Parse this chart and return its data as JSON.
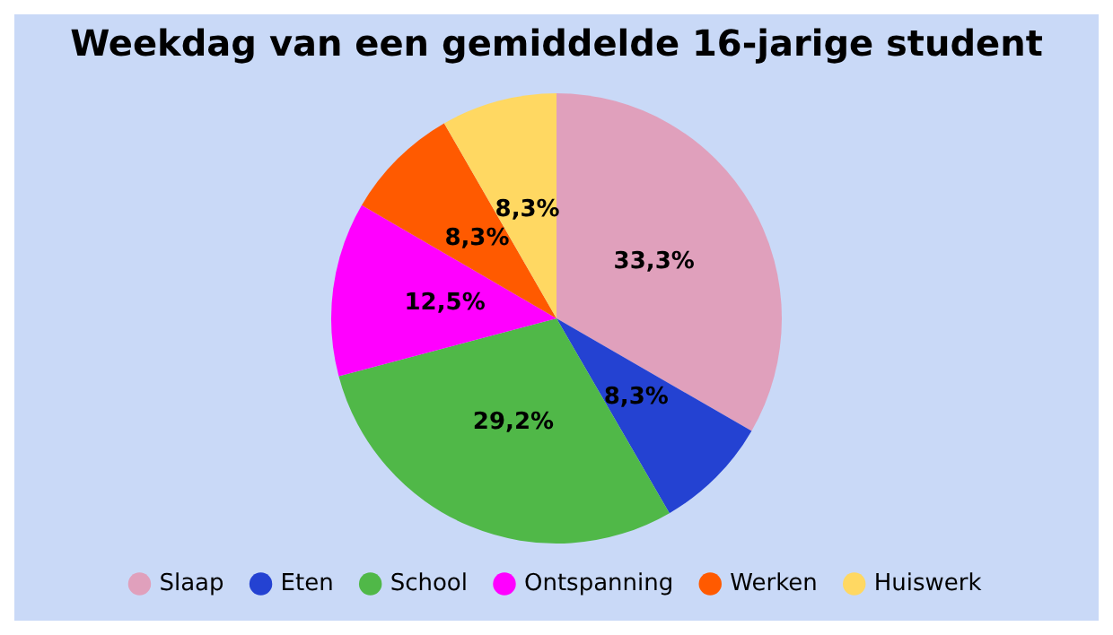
{
  "chart_data": {
    "type": "pie",
    "title": "Weekdag van een gemiddelde 16-jarige student",
    "categories": [
      "Slaap",
      "Eten",
      "School",
      "Ontspanning",
      "Werken",
      "Huiswerk"
    ],
    "values": [
      33.3,
      8.3,
      29.2,
      12.5,
      8.3,
      8.3
    ],
    "colors": [
      "#e0a0bc",
      "#2442d2",
      "#50b848",
      "#ff00ff",
      "#ff5a00",
      "#ffd862"
    ],
    "value_labels": [
      "33,3%",
      "8,3%",
      "29,2%",
      "12,5%",
      "8,3%",
      "8,3%"
    ],
    "legend": "bottom"
  }
}
